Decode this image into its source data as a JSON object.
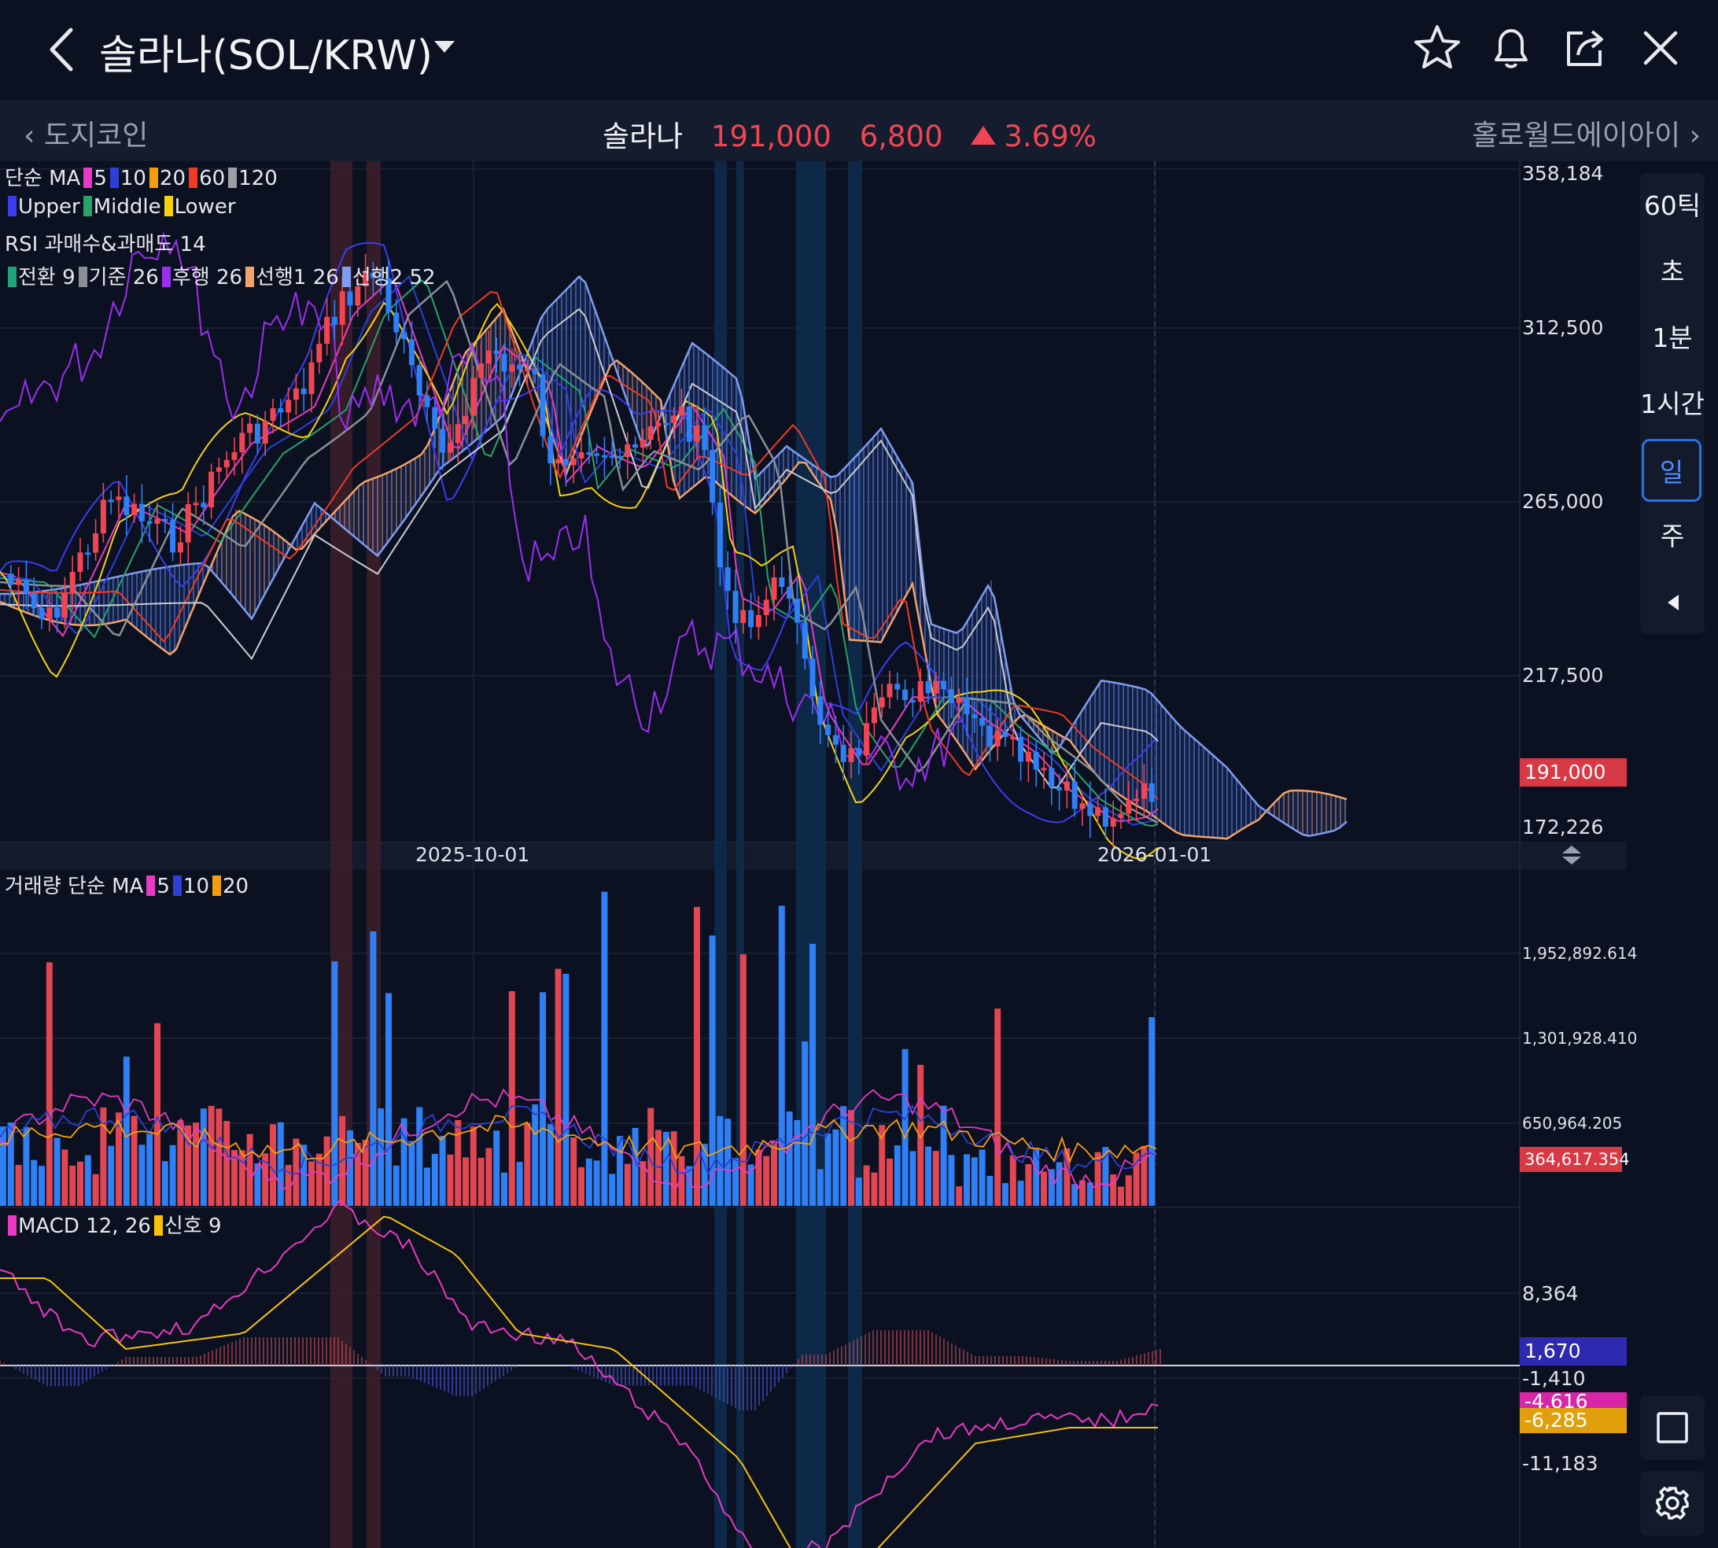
{
  "header": {
    "title": "솔라나(SOL/KRW)",
    "icons": [
      "back-chevron-icon",
      "dropdown-caret-icon",
      "star-icon",
      "bell-icon",
      "share-icon",
      "close-icon"
    ]
  },
  "ticker_bar": {
    "prev_coin": "도지코인",
    "next_coin": "홀로월드에이아이",
    "name": "솔라나",
    "price": "191,000",
    "change": "6,800",
    "change_pct": "3.69%",
    "up_color": "#f04653"
  },
  "legends": {
    "ma": {
      "prefix": "단순 MA",
      "items": [
        {
          "label": "5",
          "color": "#e83ac2"
        },
        {
          "label": "10",
          "color": "#2c3fd8"
        },
        {
          "label": "20",
          "color": "#f59e0b"
        },
        {
          "label": "60",
          "color": "#ef3b24"
        },
        {
          "label": "120",
          "color": "#9aa0a6"
        }
      ]
    },
    "bollinger": {
      "items": [
        {
          "label": "Upper",
          "color": "#3b3cf0"
        },
        {
          "label": "Middle",
          "color": "#27a36a"
        },
        {
          "label": "Lower",
          "color": "#f5d20b"
        }
      ]
    },
    "rsi": {
      "text": "RSI 과매수&과매도 14"
    },
    "ichimoku": {
      "items": [
        {
          "label": "전환 9",
          "color": "#1fa37a"
        },
        {
          "label": "기준 26",
          "color": "#8a8f96"
        },
        {
          "label": "후행 26",
          "color": "#9b2ff0"
        },
        {
          "label": "선행1 26",
          "color": "#f2a36b"
        },
        {
          "label": "선행2 52",
          "color": "#7f9cf0"
        }
      ]
    },
    "volume": {
      "prefix": "거래량 단순 MA",
      "items": [
        {
          "label": "5",
          "color": "#e83ac2"
        },
        {
          "label": "10",
          "color": "#2c3fd8"
        },
        {
          "label": "20",
          "color": "#f59e0b"
        }
      ]
    },
    "macd": {
      "items": [
        {
          "label": "MACD 12, 26",
          "color": "#e83ac2"
        },
        {
          "label": "신호 9",
          "color": "#f5c20b"
        }
      ]
    }
  },
  "price_axis": {
    "labels": [
      "358,184",
      "312,500",
      "265,000",
      "217,500",
      "172,226"
    ],
    "current_tag": "191,000",
    "current_tag_color": "#d83a45"
  },
  "volume_axis": {
    "labels": [
      "1,952,892.614",
      "1,301,928.410",
      "650,964.205"
    ],
    "current_tag": "364,617.354",
    "current_tag_color": "#d83a45"
  },
  "macd_axis": {
    "labels": [
      "8,364",
      "-1,410",
      "-11,183"
    ],
    "tags": [
      {
        "text": "1,670",
        "color": "#2e2ab0"
      },
      {
        "text": "-4,616",
        "color": "#d726a8"
      },
      {
        "text": "-6,285",
        "color": "#e0a00c"
      }
    ]
  },
  "date_axis": [
    "2025-10-01",
    "2026-01-01"
  ],
  "timeframes": {
    "items": [
      "60틱",
      "초",
      "1분",
      "1시간",
      "일",
      "주"
    ],
    "active": "일"
  },
  "tools": [
    "square-icon",
    "gear-icon"
  ]
}
